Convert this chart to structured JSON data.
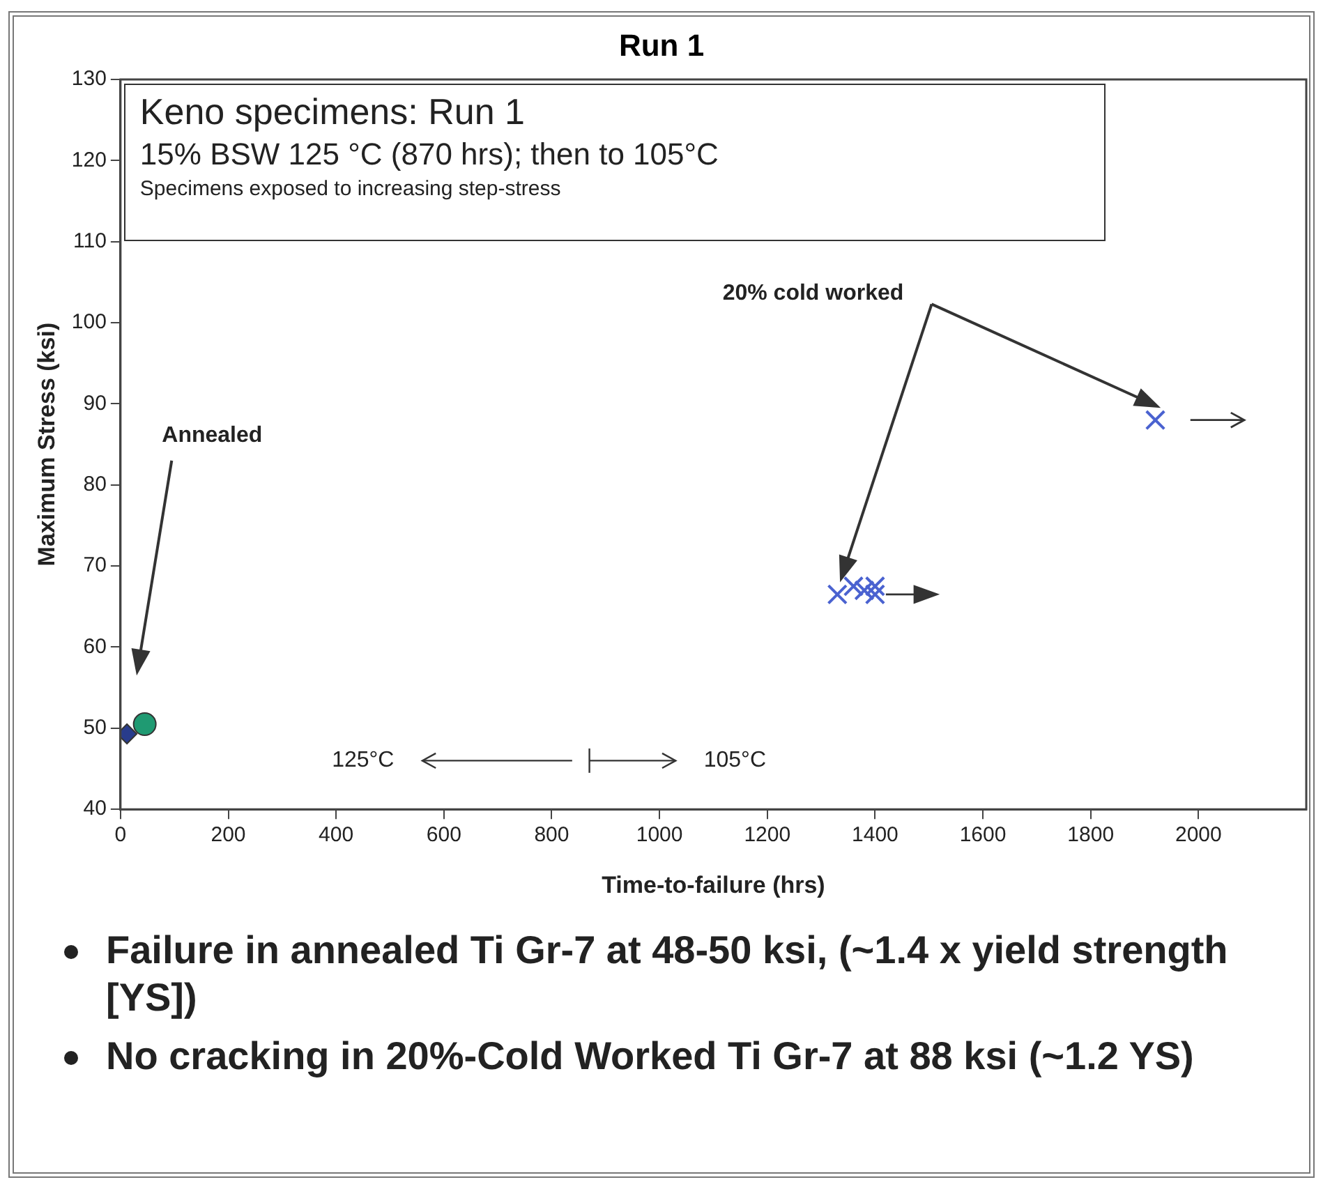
{
  "chart_data": {
    "type": "scatter",
    "title": "Run 1",
    "xlabel": "Time-to-failure (hrs)",
    "ylabel": "Maximum Stress (ksi)",
    "xlim": [
      0,
      2200
    ],
    "xticks": [
      0,
      200,
      400,
      600,
      800,
      1000,
      1200,
      1400,
      1600,
      1800,
      2000
    ],
    "ylim": [
      40,
      130
    ],
    "yticks": [
      40,
      50,
      60,
      70,
      80,
      90,
      100,
      110,
      120,
      130
    ],
    "grid": false,
    "legend": false,
    "series": [
      {
        "color": "#1f9a72",
        "marker": "circle",
        "x": [
          45
        ],
        "values": [
          50.5
        ]
      },
      {
        "color": "#283c8c",
        "marker": "diamond",
        "x": [
          12
        ],
        "values": [
          49.3
        ]
      },
      {
        "color": "#4a62d0",
        "marker": "cross",
        "x": [
          1330,
          1360,
          1380,
          1400,
          1400,
          1920
        ],
        "values": [
          66.5,
          67.5,
          67,
          66.5,
          67.5,
          88
        ]
      }
    ],
    "annotations": [
      "Keno specimens:  Run 1",
      "15% BSW 125 °C (870 hrs); then to 105°C",
      "Specimens exposed to increasing step-stress",
      "Failure in annealed Ti Gr-7 at 48-50 ksi, (~1.4 x yield strength [YS])",
      "No cracking in 20%-Cold Worked Ti Gr-7 at 88 ksi (~1.2 YS)",
      "Annealed",
      "20% cold worked",
      "125°C",
      "105°C"
    ]
  }
}
